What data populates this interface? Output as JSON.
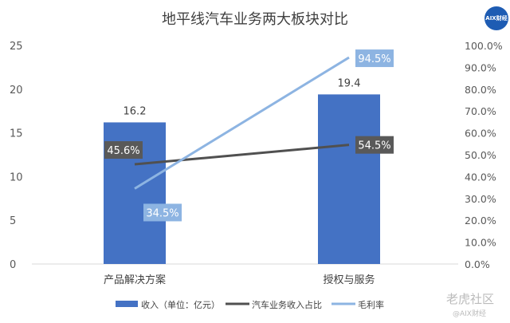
{
  "title": "地平线汽车业务两大板块对比",
  "logo_text": "AIX财经",
  "watermark": {
    "main": "老虎社区",
    "sub": "@AIX财经"
  },
  "chart_data": {
    "type": "bar+line",
    "title": "地平线汽车业务两大板块对比",
    "categories": [
      "产品解决方案",
      "授权与服务"
    ],
    "y_left": {
      "lim": [
        0,
        25
      ],
      "ticks": [
        "0",
        "5",
        "10",
        "15",
        "20",
        "25"
      ]
    },
    "y_right": {
      "lim": [
        0,
        100
      ],
      "ticks": [
        "0.0%",
        "10.0%",
        "20.0%",
        "30.0%",
        "40.0%",
        "50.0%",
        "60.0%",
        "70.0%",
        "80.0%",
        "90.0%",
        "100.0%"
      ]
    },
    "grid": false,
    "legend": "bottom",
    "series": [
      {
        "name": "收入（单位：亿元）",
        "type": "bar",
        "axis": "left",
        "values": [
          16.2,
          19.4
        ],
        "labels": [
          "16.2",
          "19.4"
        ],
        "color": "#4472c4"
      },
      {
        "name": "汽车业务收入占比",
        "type": "line",
        "axis": "right",
        "values": [
          45.6,
          54.5
        ],
        "labels": [
          "45.6%",
          "54.5%"
        ],
        "color": "#505050"
      },
      {
        "name": "毛利率",
        "type": "line",
        "axis": "right",
        "values": [
          34.5,
          94.5
        ],
        "labels": [
          "34.5%",
          "94.5%"
        ],
        "color": "#8db4e2"
      }
    ]
  }
}
